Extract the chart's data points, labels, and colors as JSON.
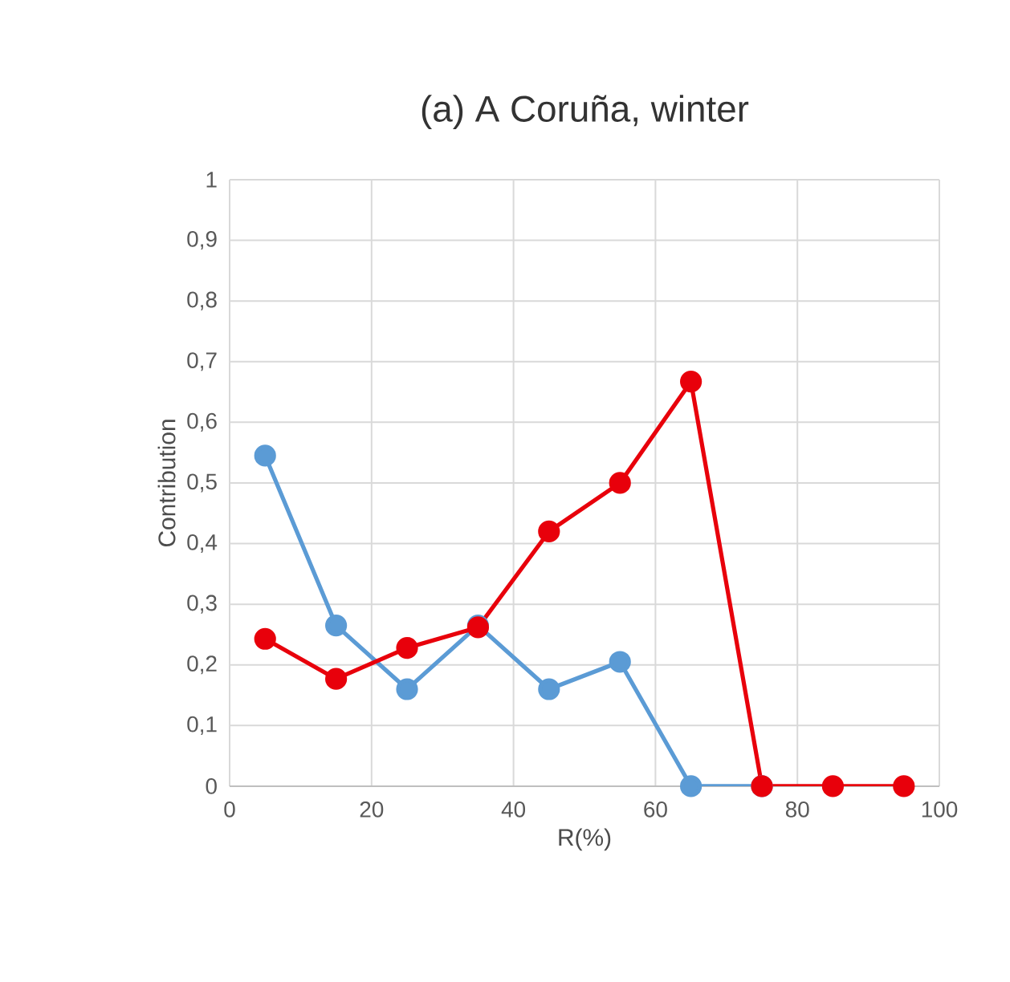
{
  "chart_data": {
    "type": "line",
    "title": "(a) A Coruña, winter",
    "xlabel": "R(%)",
    "ylabel": "Contribution",
    "x": [
      5,
      15,
      25,
      35,
      45,
      55,
      65,
      75,
      85,
      95
    ],
    "series": [
      {
        "color": "#5b9bd5",
        "values": [
          0.545,
          0.265,
          0.16,
          0.265,
          0.16,
          0.205,
          0,
          0,
          null,
          null
        ]
      },
      {
        "color": "#e8000b",
        "values": [
          0.243,
          0.177,
          0.228,
          0.262,
          0.42,
          0.5,
          0.667,
          0,
          0,
          0
        ]
      }
    ],
    "xlim": [
      0,
      100
    ],
    "xticks": [
      0,
      20,
      40,
      60,
      80,
      100
    ],
    "ylim": [
      0,
      1
    ],
    "yticks": [
      0,
      {
        "value": 0.1,
        "label": "0,1"
      },
      {
        "value": 0.2,
        "label": "0,2"
      },
      {
        "value": 0.3,
        "label": "0,3"
      },
      {
        "value": 0.4,
        "label": "0,4"
      },
      {
        "value": 0.5,
        "label": "0,5"
      },
      {
        "value": 0.6,
        "label": "0,6"
      },
      {
        "value": 0.7,
        "label": "0,7"
      },
      {
        "value": 0.8,
        "label": "0,8"
      },
      {
        "value": 0.9,
        "label": "0,9"
      },
      1
    ],
    "grid": true,
    "marker": "circle",
    "line_style": "solid"
  }
}
